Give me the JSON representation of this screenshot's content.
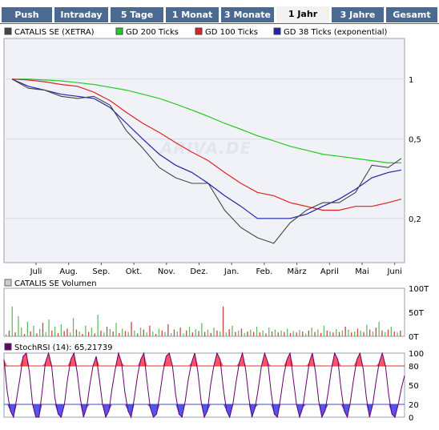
{
  "tabs": [
    {
      "label": "Push",
      "active": false
    },
    {
      "label": "Intraday",
      "active": false
    },
    {
      "label": "5 Tage",
      "active": false
    },
    {
      "label": "1 Monat",
      "active": false
    },
    {
      "label": "3 Monate",
      "active": false
    },
    {
      "label": "1 Jahr",
      "active": true
    },
    {
      "label": "3 Jahre",
      "active": false
    },
    {
      "label": "Gesamt",
      "active": false
    }
  ],
  "watermark": "ARIVA.DE",
  "colors": {
    "price": "#444444",
    "gd200": "#22cc22",
    "gd100": "#dd2222",
    "gd38": "#2222aa",
    "volume_up": "#66bb66",
    "volume_down": "#cc4444",
    "rsi_line": "#66006a",
    "rsi_high_fill": "#ff5566",
    "rsi_low_fill": "#5555ee",
    "rsi_high_line": "#dd3333",
    "rsi_low_line": "#4444cc",
    "plot_bg": "#f0f2f7",
    "tab_bg": "#4a6a94"
  },
  "chart_data": [
    {
      "type": "line",
      "legend": [
        {
          "name": "CATALIS SE (XETRA)",
          "color": "#444444"
        },
        {
          "name": "GD 200 Ticks",
          "color": "#22cc22"
        },
        {
          "name": "GD 100 Ticks",
          "color": "#dd2222"
        },
        {
          "name": "GD 38 Ticks (exponential)",
          "color": "#2222aa"
        }
      ],
      "x_tick_labels": [
        "Juli",
        "Aug.",
        "Sep.",
        "Okt.",
        "Nov.",
        "Dez.",
        "Jan.",
        "Feb.",
        "März",
        "April",
        "Mai",
        "Juni"
      ],
      "y_scale": "log",
      "y_ticks": [
        {
          "value": 1,
          "label": "1"
        },
        {
          "value": 0.5,
          "label": "0,5"
        },
        {
          "value": 0.2,
          "label": "0,2"
        }
      ],
      "ylim": [
        0.12,
        1.6
      ],
      "x": [
        0.0,
        0.5,
        1.0,
        1.5,
        2.0,
        2.5,
        3.0,
        3.5,
        4.0,
        4.5,
        5.0,
        5.5,
        6.0,
        6.5,
        7.0,
        7.5,
        8.0,
        8.5,
        9.0,
        9.5,
        10.0,
        10.5,
        11.0,
        11.5,
        11.9
      ],
      "series": [
        {
          "name": "CATALIS SE (XETRA)",
          "values": [
            1.0,
            0.9,
            0.88,
            0.82,
            0.8,
            0.82,
            0.74,
            0.55,
            0.45,
            0.36,
            0.32,
            0.3,
            0.3,
            0.22,
            0.18,
            0.16,
            0.15,
            0.19,
            0.22,
            0.24,
            0.24,
            0.27,
            0.37,
            0.36,
            0.4
          ]
        },
        {
          "name": "GD 200 Ticks",
          "values": [
            1.0,
            1.0,
            0.99,
            0.98,
            0.96,
            0.94,
            0.91,
            0.88,
            0.84,
            0.8,
            0.75,
            0.7,
            0.65,
            0.6,
            0.56,
            0.52,
            0.49,
            0.46,
            0.44,
            0.42,
            0.41,
            0.4,
            0.39,
            0.38,
            0.38
          ]
        },
        {
          "name": "GD 100 Ticks",
          "values": [
            1.0,
            0.99,
            0.97,
            0.94,
            0.92,
            0.86,
            0.78,
            0.68,
            0.6,
            0.54,
            0.48,
            0.43,
            0.39,
            0.34,
            0.3,
            0.27,
            0.26,
            0.24,
            0.23,
            0.22,
            0.22,
            0.23,
            0.23,
            0.24,
            0.25
          ]
        },
        {
          "name": "GD 38 Ticks (exponential)",
          "values": [
            1.0,
            0.92,
            0.88,
            0.84,
            0.82,
            0.8,
            0.72,
            0.6,
            0.5,
            0.42,
            0.37,
            0.34,
            0.3,
            0.26,
            0.23,
            0.2,
            0.2,
            0.2,
            0.21,
            0.23,
            0.25,
            0.28,
            0.32,
            0.34,
            0.35
          ]
        }
      ]
    },
    {
      "type": "bar",
      "legend": [
        {
          "name": "CATALIS SE Volumen",
          "color": "#666666"
        }
      ],
      "y_ticks": [
        {
          "value": 100,
          "label": "100T"
        },
        {
          "value": 50,
          "label": "50T"
        },
        {
          "value": 0,
          "label": "0T"
        }
      ],
      "ylim": [
        0,
        100
      ],
      "values_thousands": [
        4,
        12,
        62,
        8,
        42,
        18,
        5,
        30,
        10,
        22,
        6,
        15,
        28,
        9,
        35,
        12,
        20,
        7,
        25,
        11,
        16,
        8,
        38,
        14,
        10,
        5,
        22,
        9,
        18,
        6,
        45,
        12,
        8,
        20,
        15,
        10,
        28,
        7,
        16,
        11,
        9,
        30,
        12,
        6,
        18,
        14,
        8,
        22,
        10,
        5,
        16,
        12,
        9,
        25,
        7,
        14,
        10,
        18,
        6,
        12,
        20,
        8,
        15,
        11,
        28,
        9,
        14,
        7,
        18,
        12,
        10,
        62,
        8,
        15,
        22,
        9,
        12,
        16,
        7,
        10,
        14,
        9,
        20,
        8,
        12,
        6,
        18,
        10,
        14,
        8,
        12,
        9,
        16,
        7,
        11,
        8,
        13,
        10,
        6,
        12,
        18,
        9,
        14,
        7,
        22,
        12,
        10,
        8,
        15,
        9,
        12,
        20,
        14,
        8,
        10,
        16,
        12,
        9,
        24,
        14,
        10,
        18,
        30,
        12,
        9,
        14,
        20,
        10,
        8,
        12
      ],
      "up": [
        true,
        false,
        true,
        false,
        true,
        true,
        false,
        true,
        false,
        true,
        false,
        true,
        false,
        true,
        true,
        false,
        true,
        false,
        true,
        false,
        false,
        true,
        true,
        false,
        true,
        false,
        true,
        false,
        true,
        false,
        true,
        false,
        true,
        false,
        true,
        false,
        true,
        false,
        true,
        false,
        true,
        false,
        true,
        false,
        true,
        false,
        true,
        false,
        true,
        false,
        true,
        false,
        true,
        false,
        true,
        false,
        true,
        false,
        true,
        false,
        true,
        false,
        true,
        false,
        true,
        false,
        true,
        false,
        true,
        false,
        true,
        false,
        true,
        false,
        true,
        false,
        true,
        false,
        true,
        false,
        true,
        false,
        true,
        false,
        true,
        false,
        true,
        false,
        true,
        false,
        true,
        false,
        true,
        false,
        true,
        false,
        true,
        false,
        true,
        false,
        true,
        false,
        true,
        false,
        true,
        false,
        true,
        false,
        true,
        false,
        true,
        false,
        true,
        false,
        true,
        false,
        true,
        false,
        true,
        false,
        true,
        false,
        true,
        false,
        true,
        false,
        true,
        false,
        true,
        false
      ]
    },
    {
      "type": "line",
      "legend": [
        {
          "name": "StochRSI (14): 65,21739",
          "color": "#66006a"
        }
      ],
      "y_ticks": [
        {
          "value": 100,
          "label": "100"
        },
        {
          "value": 80,
          "label": "80"
        },
        {
          "value": 50,
          "label": "50"
        },
        {
          "value": 20,
          "label": "20"
        },
        {
          "value": 0,
          "label": "0"
        }
      ],
      "ylim": [
        0,
        100
      ],
      "thresholds": [
        80,
        20
      ],
      "values": [
        90,
        40,
        10,
        0,
        30,
        60,
        95,
        100,
        70,
        20,
        0,
        0,
        40,
        85,
        100,
        80,
        30,
        5,
        0,
        20,
        60,
        90,
        100,
        70,
        30,
        0,
        15,
        50,
        80,
        95,
        60,
        20,
        0,
        10,
        45,
        75,
        100,
        85,
        40,
        10,
        0,
        30,
        65,
        90,
        100,
        55,
        15,
        0,
        5,
        35,
        70,
        95,
        100,
        80,
        35,
        5,
        0,
        25,
        60,
        85,
        100,
        70,
        25,
        0,
        10,
        50,
        80,
        100,
        90,
        45,
        10,
        0,
        20,
        55,
        85,
        100,
        75,
        30,
        0,
        15,
        45,
        80,
        100,
        85,
        40,
        5,
        0,
        30,
        65,
        90,
        100,
        60,
        20,
        0,
        15,
        50,
        85,
        100,
        70,
        25,
        0,
        10,
        40,
        75,
        100,
        90,
        45,
        10,
        0,
        25,
        60,
        90,
        100,
        75,
        30,
        0,
        20,
        55,
        85,
        100,
        80,
        35,
        5,
        0,
        20,
        45,
        65
      ]
    }
  ]
}
